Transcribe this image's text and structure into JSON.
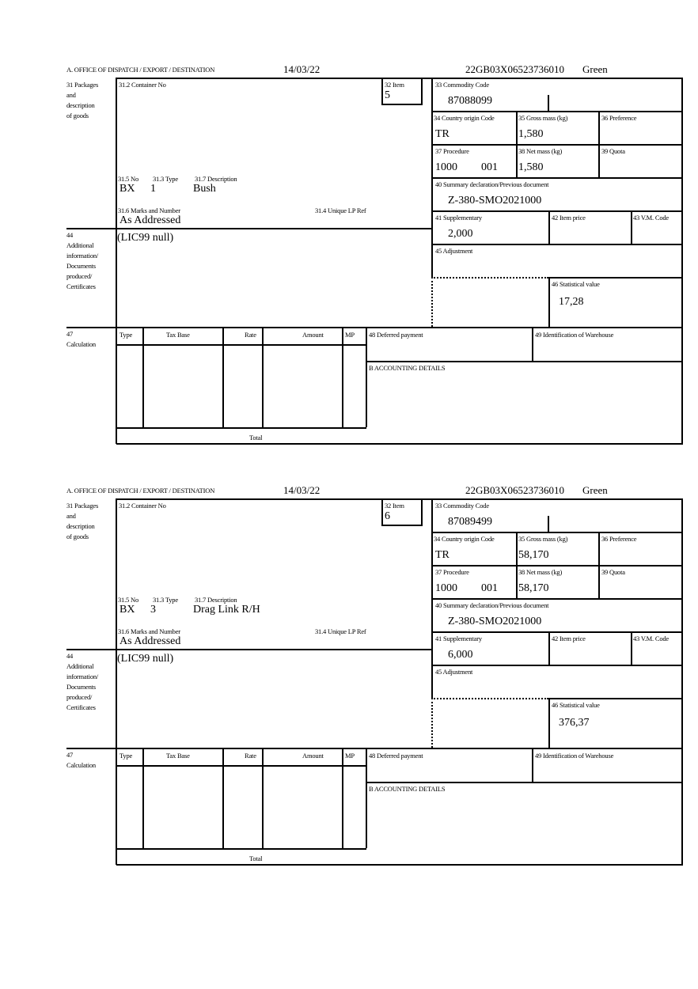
{
  "labels": {
    "office": "A.  OFFICE OF DISPATCH / EXPORT / DESTINATION",
    "box31": [
      "31 Packages",
      "and",
      "description",
      "of goods"
    ],
    "container_no": "31.2 Container No",
    "item": "32 Item",
    "commodity_code": "33 Commodity Code",
    "country_origin": "34 Country origin Code",
    "gross_mass": "35 Gross mass (kg)",
    "preference": "36 Preference",
    "procedure": "37 Procedure",
    "net_mass": "38 Net mass (kg)",
    "quota": "39 Quota",
    "summary_declaration": "40 Summary declaration/Previous document",
    "supplementary": "41 Supplementary",
    "item_price": "42 Item price",
    "vm_code": "43 V.M. Code",
    "adjustment": "45 Adjustment",
    "statistical_value": "46 Statistical value",
    "pkg_no": "31.5 No",
    "pkg_type": "31.3 Type",
    "pkg_description": "31.7 Description",
    "marks_numbers": "31.6 Marks and Number",
    "unique_lp_ref": "31.4 Unique LP Ref",
    "box44": [
      "44",
      "Additional",
      "information/",
      "Documents",
      "produced/",
      "Certificates"
    ],
    "box47": [
      "47",
      "Calculation"
    ],
    "calc_type": "Type",
    "calc_tax_base": "Tax Base",
    "calc_rate": "Rate",
    "calc_amount": "Amount",
    "calc_mp": "MP",
    "deferred_payment": "48 Deferred payment",
    "warehouse_id": "49 Identification of Warehouse",
    "accounting_details": "B ACCOUNTING DETAILS",
    "total": "Total"
  },
  "forms": [
    {
      "date": "14/03/22",
      "reference": "22GB03X06523736010",
      "status": "Green",
      "item": "5",
      "commodity_code": "87088099",
      "country_origin": "TR",
      "gross_mass": "1,580",
      "procedure_code": "1000",
      "procedure_suffix": "001",
      "net_mass": "1,580",
      "summary_declaration": "Z-380-SMO2021000",
      "supplementary": "2,000",
      "statistical_value": "17,28",
      "pkg_no": "BX",
      "pkg_type": "1",
      "pkg_description": "Bush",
      "marks_numbers": "As Addressed",
      "additional_info": "(LIC99 null)"
    },
    {
      "date": "14/03/22",
      "reference": "22GB03X06523736010",
      "status": "Green",
      "item": "6",
      "commodity_code": "87089499",
      "country_origin": "TR",
      "gross_mass": "58,170",
      "procedure_code": "1000",
      "procedure_suffix": "001",
      "net_mass": "58,170",
      "summary_declaration": "Z-380-SMO2021000",
      "supplementary": "6,000",
      "statistical_value": "376,37",
      "pkg_no": "BX",
      "pkg_type": "3",
      "pkg_description": "Drag Link R/H",
      "marks_numbers": "As Addressed",
      "additional_info": "(LIC99 null)"
    }
  ]
}
